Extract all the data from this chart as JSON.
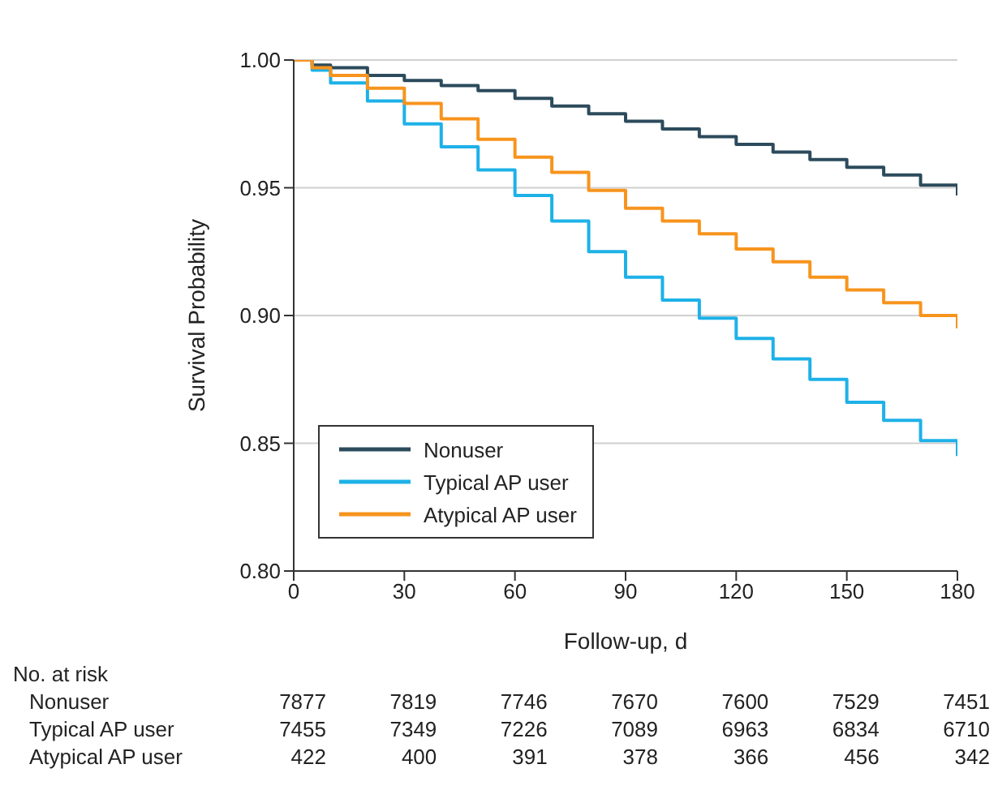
{
  "chart_data": {
    "type": "step",
    "xlabel": "Follow-up, d",
    "ylabel": "Survival Probability",
    "xlim": [
      0,
      180
    ],
    "xticks": [
      0,
      30,
      60,
      90,
      120,
      150,
      180
    ],
    "ylim": [
      0.8,
      1.0
    ],
    "yticks": [
      {
        "value": 0.8,
        "label": "0.80"
      },
      {
        "value": 0.85,
        "label": "0.85"
      },
      {
        "value": 0.9,
        "label": "0.90"
      },
      {
        "value": 0.95,
        "label": "0.95"
      },
      {
        "value": 1.0,
        "label": "1.00"
      }
    ],
    "grid": "y",
    "legend": "bottom left",
    "x": [
      0,
      5,
      10,
      20,
      30,
      40,
      50,
      60,
      70,
      80,
      90,
      100,
      110,
      120,
      130,
      140,
      150,
      160,
      170,
      180
    ],
    "series": [
      {
        "name": "Nonuser",
        "color": "#2c4b5c",
        "values": [
          1.0,
          0.998,
          0.997,
          0.994,
          0.992,
          0.99,
          0.988,
          0.985,
          0.982,
          0.979,
          0.976,
          0.973,
          0.97,
          0.967,
          0.964,
          0.961,
          0.958,
          0.955,
          0.951,
          0.947
        ]
      },
      {
        "name": "Typical AP user",
        "color": "#1eb1e8",
        "values": [
          1.0,
          0.996,
          0.991,
          0.984,
          0.975,
          0.966,
          0.957,
          0.947,
          0.937,
          0.925,
          0.915,
          0.906,
          0.899,
          0.891,
          0.883,
          0.875,
          0.866,
          0.859,
          0.851,
          0.845
        ]
      },
      {
        "name": "Atypical AP user",
        "color": "#f7941d",
        "values": [
          1.0,
          0.997,
          0.994,
          0.989,
          0.983,
          0.977,
          0.969,
          0.962,
          0.956,
          0.949,
          0.942,
          0.937,
          0.932,
          0.926,
          0.921,
          0.915,
          0.91,
          0.905,
          0.9,
          0.895
        ]
      }
    ],
    "annotations": [
      "No. at risk",
      "Nonuser",
      "7877",
      "7819",
      "7746",
      "7670",
      "7600",
      "7529",
      "7451",
      "Typical AP user",
      "7455",
      "7349",
      "7226",
      "7089",
      "6963",
      "6834",
      "6710",
      "Atypical AP user",
      "422",
      "400",
      "391",
      "378",
      "366",
      "456",
      "342"
    ]
  }
}
